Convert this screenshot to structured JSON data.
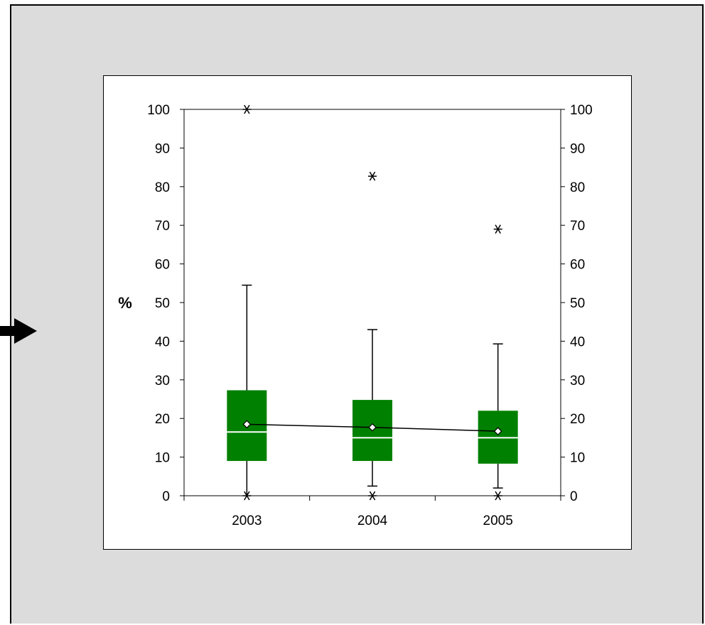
{
  "chart_data": {
    "type": "box",
    "ylabel": "%",
    "ylim": [
      0,
      100
    ],
    "yticks": [
      0,
      10,
      20,
      30,
      40,
      50,
      60,
      70,
      80,
      90,
      100
    ],
    "categories": [
      "2003",
      "2004",
      "2005"
    ],
    "boxes": [
      {
        "category": "2003",
        "whisker_low": 0,
        "q1": 9,
        "median": 16.5,
        "q3": 27.3,
        "whisker_high": 54.5,
        "mean": 18.5,
        "outliers_high": [
          100
        ],
        "outliers_low": [
          0
        ]
      },
      {
        "category": "2004",
        "whisker_low": 2.5,
        "q1": 9,
        "median": 15,
        "q3": 24.8,
        "whisker_high": 43,
        "mean": 17.7,
        "outliers_high": [
          82.7
        ],
        "outliers_low": [
          0
        ]
      },
      {
        "category": "2005",
        "whisker_low": 2,
        "q1": 8.3,
        "median": 15,
        "q3": 22,
        "whisker_high": 39.3,
        "mean": 16.7,
        "outliers_high": [
          69
        ],
        "outliers_low": [
          0
        ]
      }
    ],
    "mean_line": true,
    "secondary_y_axis": true,
    "grid": false,
    "box_color": "#008000",
    "median_color": "#ffffff",
    "mean_marker": "diamond"
  }
}
